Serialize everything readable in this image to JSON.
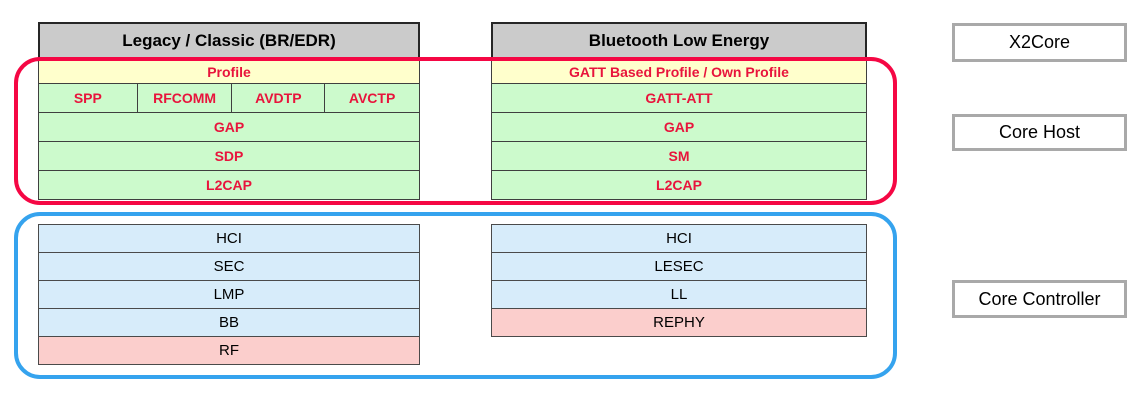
{
  "colors": {
    "host_outline_red": "#F50744",
    "controller_outline_blue": "#35A3EE",
    "header_gray": "#CBCBCB",
    "profile_yellow": "#FFFFCC",
    "host_green": "#CCFACC",
    "controller_blue": "#D7ECFA",
    "radio_pink": "#FBCECC",
    "red_text": "#E8143C"
  },
  "classic": {
    "header": "Legacy / Classic (BR/EDR)",
    "profile": "Profile",
    "sub_profiles": [
      "SPP",
      "RFCOMM",
      "AVDTP",
      "AVCTP"
    ],
    "host_rows": [
      "GAP",
      "SDP",
      "L2CAP"
    ],
    "controller_rows": [
      "HCI",
      "SEC",
      "LMP",
      "BB"
    ],
    "controller_rf": "RF"
  },
  "ble": {
    "header": "Bluetooth Low Energy",
    "profile": "GATT Based Profile / Own Profile",
    "host_rows": [
      "GATT-ATT",
      "GAP",
      "SM",
      "L2CAP"
    ],
    "controller_rows": [
      "HCI",
      "LESEC",
      "LL"
    ],
    "controller_rf": "REPHY"
  },
  "legend": {
    "x2core": "X2Core",
    "core_host": "Core Host",
    "core_controller": "Core Controller"
  }
}
